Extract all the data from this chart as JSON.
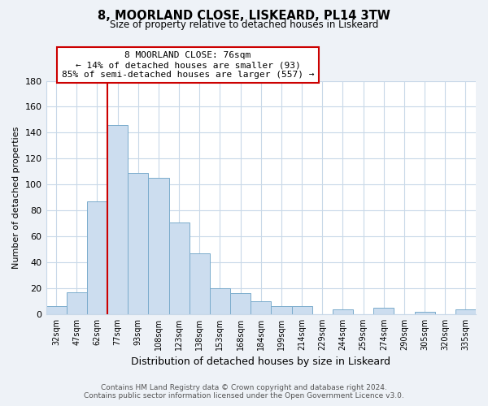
{
  "title": "8, MOORLAND CLOSE, LISKEARD, PL14 3TW",
  "subtitle": "Size of property relative to detached houses in Liskeard",
  "xlabel": "Distribution of detached houses by size in Liskeard",
  "ylabel": "Number of detached properties",
  "bar_labels": [
    "32sqm",
    "47sqm",
    "62sqm",
    "77sqm",
    "93sqm",
    "108sqm",
    "123sqm",
    "138sqm",
    "153sqm",
    "168sqm",
    "184sqm",
    "199sqm",
    "214sqm",
    "229sqm",
    "244sqm",
    "259sqm",
    "274sqm",
    "290sqm",
    "305sqm",
    "320sqm",
    "335sqm"
  ],
  "bar_values": [
    6,
    17,
    87,
    146,
    109,
    105,
    71,
    47,
    20,
    16,
    10,
    6,
    6,
    0,
    4,
    0,
    5,
    0,
    2,
    0,
    4
  ],
  "bar_color": "#ccddef",
  "bar_edge_color": "#7aabcc",
  "vline_index": 3,
  "vline_color": "#cc0000",
  "annotation_title": "8 MOORLAND CLOSE: 76sqm",
  "annotation_line1": "← 14% of detached houses are smaller (93)",
  "annotation_line2": "85% of semi-detached houses are larger (557) →",
  "annotation_box_facecolor": "#ffffff",
  "annotation_box_edgecolor": "#cc0000",
  "ylim": [
    0,
    180
  ],
  "yticks": [
    0,
    20,
    40,
    60,
    80,
    100,
    120,
    140,
    160,
    180
  ],
  "footer_line1": "Contains HM Land Registry data © Crown copyright and database right 2024.",
  "footer_line2": "Contains public sector information licensed under the Open Government Licence v3.0.",
  "bg_color": "#eef2f7",
  "plot_bg_color": "#ffffff",
  "grid_color": "#c8d8e8"
}
